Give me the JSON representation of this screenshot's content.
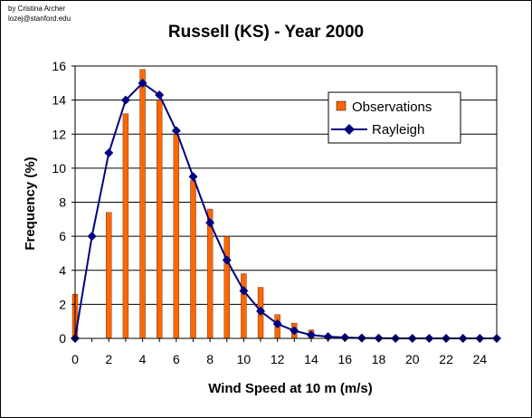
{
  "credit": [
    "by Cristina Archer",
    "lozej@stanford.edu"
  ],
  "chart_data": {
    "type": "bar",
    "title": "Russell (KS) - Year 2000",
    "xlabel": "Wind Speed at 10 m (m/s)",
    "ylabel": "Frequency (%)",
    "xlim": [
      0,
      25
    ],
    "ylim": [
      0,
      16
    ],
    "yticks": [
      0,
      2,
      4,
      6,
      8,
      10,
      12,
      14,
      16
    ],
    "xticks": [
      0,
      2,
      4,
      6,
      8,
      10,
      12,
      14,
      16,
      18,
      20,
      22,
      24
    ],
    "grid": "horizontal",
    "legend_position": "right",
    "x": [
      0,
      1,
      2,
      3,
      4,
      5,
      6,
      7,
      8,
      9,
      10,
      11,
      12,
      13,
      14,
      15,
      16,
      17,
      18,
      19,
      20,
      21,
      22,
      23,
      24,
      25
    ],
    "series": [
      {
        "name": "Observations",
        "kind": "bar",
        "color": "#ff6600",
        "values": [
          2.6,
          0,
          7.4,
          13.2,
          15.8,
          14.0,
          12.0,
          9.3,
          7.6,
          6.0,
          3.8,
          3.0,
          1.4,
          0.9,
          0.5,
          0.2,
          0.1,
          0.05,
          0.03,
          0,
          0,
          0,
          0,
          0,
          0,
          0
        ]
      },
      {
        "name": "Rayleigh",
        "kind": "line",
        "color": "#000080",
        "marker": "diamond",
        "values": [
          0,
          6.0,
          10.9,
          14.0,
          15.0,
          14.3,
          12.2,
          9.5,
          6.8,
          4.6,
          2.8,
          1.6,
          0.85,
          0.45,
          0.2,
          0.1,
          0.05,
          0.02,
          0.01,
          0,
          0,
          0,
          0,
          0,
          0,
          0
        ]
      }
    ]
  }
}
